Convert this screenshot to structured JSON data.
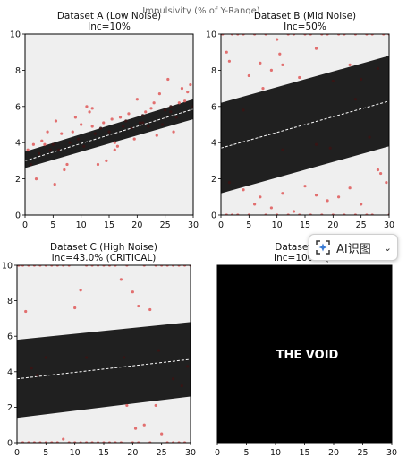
{
  "figure_title": "Impulsivity (% of Y-Range)",
  "overlay": {
    "label": "AI识图",
    "chevron": "⌄",
    "icon": "sparkle-scan-icon"
  },
  "colors": {
    "band": "#202020",
    "background": "#efefef",
    "points": "#e06060",
    "center_line": "#ffffff",
    "void": "#000000",
    "void_text": "#ffffff"
  },
  "chart_data": [
    {
      "type": "scatter",
      "title": "Dataset A (Low Noise)",
      "subtitle": "Inc=10%",
      "xlim": [
        0,
        30
      ],
      "ylim": [
        0,
        10
      ],
      "xticks": [
        0,
        5,
        10,
        15,
        20,
        25,
        30
      ],
      "yticks": [
        0,
        2,
        4,
        6,
        8,
        10
      ],
      "band": {
        "x": [
          0,
          30
        ],
        "lower": [
          2.6,
          5.3
        ],
        "upper": [
          3.5,
          6.4
        ],
        "center": [
          3.0,
          5.85
        ]
      },
      "points": [
        [
          0.5,
          3.6
        ],
        [
          1.0,
          2.8
        ],
        [
          1.5,
          3.9
        ],
        [
          2.0,
          2.0
        ],
        [
          2.5,
          3.4
        ],
        [
          3.0,
          4.1
        ],
        [
          3.5,
          3.9
        ],
        [
          4.0,
          4.6
        ],
        [
          4.5,
          3.6
        ],
        [
          5.0,
          3.9
        ],
        [
          5.5,
          5.2
        ],
        [
          6.0,
          3.6
        ],
        [
          6.5,
          4.5
        ],
        [
          7.0,
          2.5
        ],
        [
          7.5,
          2.8
        ],
        [
          8.0,
          4.0
        ],
        [
          8.5,
          4.6
        ],
        [
          9.0,
          5.4
        ],
        [
          9.5,
          4.2
        ],
        [
          10.0,
          5.0
        ],
        [
          10.5,
          3.8
        ],
        [
          11.0,
          6.0
        ],
        [
          11.5,
          5.7
        ],
        [
          12.0,
          4.9
        ],
        [
          12.5,
          4.5
        ],
        [
          13.0,
          2.8
        ],
        [
          13.5,
          4.8
        ],
        [
          14.0,
          5.1
        ],
        [
          14.5,
          3.0
        ],
        [
          15.0,
          4.6
        ],
        [
          15.5,
          5.3
        ],
        [
          16.0,
          4.0
        ],
        [
          16.5,
          3.8
        ],
        [
          17.0,
          5.4
        ],
        [
          17.5,
          4.9
        ],
        [
          18.0,
          5.2
        ],
        [
          18.5,
          5.6
        ],
        [
          19.0,
          4.8
        ],
        [
          19.5,
          4.2
        ],
        [
          20.0,
          6.4
        ],
        [
          20.5,
          5.1
        ],
        [
          21.0,
          5.5
        ],
        [
          21.5,
          5.7
        ],
        [
          22.0,
          4.9
        ],
        [
          22.5,
          5.9
        ],
        [
          23.0,
          6.2
        ],
        [
          23.5,
          4.4
        ],
        [
          24.0,
          6.7
        ],
        [
          24.5,
          5.0
        ],
        [
          25.0,
          5.8
        ],
        [
          25.5,
          7.5
        ],
        [
          26.0,
          6.0
        ],
        [
          26.5,
          4.6
        ],
        [
          27.0,
          5.4
        ],
        [
          27.5,
          6.2
        ],
        [
          28.0,
          7.0
        ],
        [
          28.5,
          6.3
        ],
        [
          29.0,
          6.8
        ],
        [
          29.5,
          7.2
        ],
        [
          30.0,
          6.0
        ],
        [
          5.3,
          1.7
        ],
        [
          12.0,
          5.9
        ],
        [
          16.0,
          3.6
        ],
        [
          21.0,
          5.1
        ],
        [
          26.0,
          5.7
        ]
      ]
    },
    {
      "type": "scatter",
      "title": "Dataset B (Mid Noise)",
      "subtitle": "Inc=50%",
      "xlim": [
        0,
        30
      ],
      "ylim": [
        0,
        10
      ],
      "xticks": [
        0,
        5,
        10,
        15,
        20,
        25,
        30
      ],
      "yticks": [
        0,
        2,
        4,
        6,
        8,
        10
      ],
      "band": {
        "x": [
          0,
          30
        ],
        "lower": [
          1.2,
          3.8
        ],
        "upper": [
          6.2,
          8.8
        ],
        "center": [
          3.7,
          6.3
        ]
      },
      "points": [
        [
          0.3,
          10
        ],
        [
          1.0,
          9.0
        ],
        [
          1.5,
          8.5
        ],
        [
          2.0,
          10
        ],
        [
          3.0,
          10
        ],
        [
          4.0,
          10
        ],
        [
          5.0,
          7.7
        ],
        [
          6.0,
          10
        ],
        [
          7.0,
          8.4
        ],
        [
          7.5,
          7.0
        ],
        [
          8.0,
          10
        ],
        [
          9.0,
          8.0
        ],
        [
          10.0,
          9.7
        ],
        [
          10.5,
          8.9
        ],
        [
          11.0,
          8.3
        ],
        [
          12.0,
          10
        ],
        [
          13.0,
          10
        ],
        [
          14.0,
          7.6
        ],
        [
          15.0,
          10
        ],
        [
          16.0,
          10
        ],
        [
          17.0,
          9.2
        ],
        [
          18.0,
          10
        ],
        [
          19.0,
          10
        ],
        [
          20.0,
          7.4
        ],
        [
          21.0,
          10
        ],
        [
          22.0,
          10
        ],
        [
          23.0,
          8.3
        ],
        [
          24.0,
          10
        ],
        [
          25.0,
          7.5
        ],
        [
          26.0,
          10
        ],
        [
          27.0,
          10
        ],
        [
          28.0,
          8.1
        ],
        [
          29.0,
          10
        ],
        [
          30.0,
          10
        ],
        [
          1.0,
          0
        ],
        [
          1.5,
          1.8
        ],
        [
          2.0,
          0
        ],
        [
          3.0,
          0
        ],
        [
          4.0,
          1.4
        ],
        [
          5.0,
          0
        ],
        [
          6.0,
          0.6
        ],
        [
          7.0,
          1.0
        ],
        [
          8.0,
          0
        ],
        [
          9.0,
          0.4
        ],
        [
          10.0,
          0
        ],
        [
          11.0,
          1.2
        ],
        [
          12.0,
          0
        ],
        [
          13.0,
          0.2
        ],
        [
          14.0,
          0
        ],
        [
          15.0,
          1.6
        ],
        [
          16.0,
          0
        ],
        [
          17.0,
          1.1
        ],
        [
          18.0,
          0
        ],
        [
          19.0,
          0.8
        ],
        [
          20.0,
          0
        ],
        [
          21.0,
          1.0
        ],
        [
          22.0,
          0
        ],
        [
          23.0,
          1.5
        ],
        [
          24.0,
          0
        ],
        [
          25.0,
          0.6
        ],
        [
          26.0,
          0
        ],
        [
          27.0,
          0
        ],
        [
          28.0,
          2.5
        ],
        [
          28.5,
          2.3
        ],
        [
          29.5,
          1.8
        ],
        [
          30.0,
          0
        ],
        [
          4.0,
          5.8
        ],
        [
          11.0,
          3.6
        ],
        [
          17.0,
          3.9
        ],
        [
          19.5,
          3.7
        ],
        [
          24.0,
          6.4
        ],
        [
          26.5,
          4.3
        ]
      ]
    },
    {
      "type": "scatter",
      "title": "Dataset C (High Noise)",
      "subtitle": "Inc=43.0% (CRITICAL)",
      "xlim": [
        0,
        30
      ],
      "ylim": [
        0,
        10
      ],
      "xticks": [
        0,
        5,
        10,
        15,
        20,
        25,
        30
      ],
      "yticks": [
        0,
        2,
        4,
        6,
        8,
        10
      ],
      "band": {
        "x": [
          0,
          30
        ],
        "lower": [
          1.4,
          2.6
        ],
        "upper": [
          5.8,
          6.8
        ],
        "center": [
          3.6,
          4.7
        ]
      },
      "points": [
        [
          0.3,
          10
        ],
        [
          1.0,
          10
        ],
        [
          1.5,
          7.4
        ],
        [
          2.0,
          10
        ],
        [
          3.0,
          10
        ],
        [
          4.0,
          10
        ],
        [
          5.0,
          10
        ],
        [
          6.0,
          10
        ],
        [
          7.0,
          10
        ],
        [
          8.0,
          10
        ],
        [
          9.0,
          10
        ],
        [
          10.0,
          7.6
        ],
        [
          11.0,
          8.6
        ],
        [
          12.0,
          10
        ],
        [
          13.0,
          10
        ],
        [
          14.0,
          10
        ],
        [
          15.0,
          10
        ],
        [
          16.0,
          10
        ],
        [
          17.0,
          10
        ],
        [
          18.0,
          9.2
        ],
        [
          19.0,
          10
        ],
        [
          20.0,
          8.5
        ],
        [
          21.0,
          7.7
        ],
        [
          22.0,
          10
        ],
        [
          23.0,
          7.5
        ],
        [
          24.0,
          10
        ],
        [
          25.0,
          10
        ],
        [
          26.0,
          10
        ],
        [
          27.0,
          10
        ],
        [
          28.0,
          10
        ],
        [
          29.0,
          10
        ],
        [
          30.0,
          10
        ],
        [
          1.0,
          0
        ],
        [
          2.0,
          0
        ],
        [
          3.0,
          0
        ],
        [
          4.0,
          0
        ],
        [
          5.0,
          0
        ],
        [
          6.0,
          0
        ],
        [
          7.0,
          0
        ],
        [
          8.0,
          0.2
        ],
        [
          9.0,
          0
        ],
        [
          10.0,
          0
        ],
        [
          11.0,
          0
        ],
        [
          12.0,
          0
        ],
        [
          13.0,
          0
        ],
        [
          14.0,
          0
        ],
        [
          15.0,
          0
        ],
        [
          16.0,
          0
        ],
        [
          17.0,
          0
        ],
        [
          18.0,
          0
        ],
        [
          19.0,
          2.1
        ],
        [
          20.0,
          0
        ],
        [
          20.5,
          0.8
        ],
        [
          21.0,
          0
        ],
        [
          22.0,
          1.0
        ],
        [
          23.0,
          0
        ],
        [
          24.0,
          2.1
        ],
        [
          25.0,
          0.5
        ],
        [
          26.0,
          0
        ],
        [
          27.0,
          0
        ],
        [
          28.0,
          0
        ],
        [
          29.0,
          0
        ],
        [
          2.5,
          4.2
        ],
        [
          3.5,
          3.8
        ],
        [
          5.0,
          4.8
        ],
        [
          12.0,
          4.8
        ],
        [
          18.5,
          4.8
        ],
        [
          24.5,
          5.2
        ],
        [
          27.0,
          3.6
        ],
        [
          29.5,
          4.3
        ],
        [
          28.5,
          3.2
        ]
      ]
    },
    {
      "type": "scatter",
      "title": "Dataset D (T",
      "subtitle": "Inc=100% (B",
      "xlim": [
        0,
        30
      ],
      "ylim": [
        0,
        10
      ],
      "xticks": [
        0,
        5,
        10,
        15,
        20,
        25,
        30
      ],
      "yticks": [],
      "annotation": "THE VOID",
      "void": true,
      "points": []
    }
  ]
}
